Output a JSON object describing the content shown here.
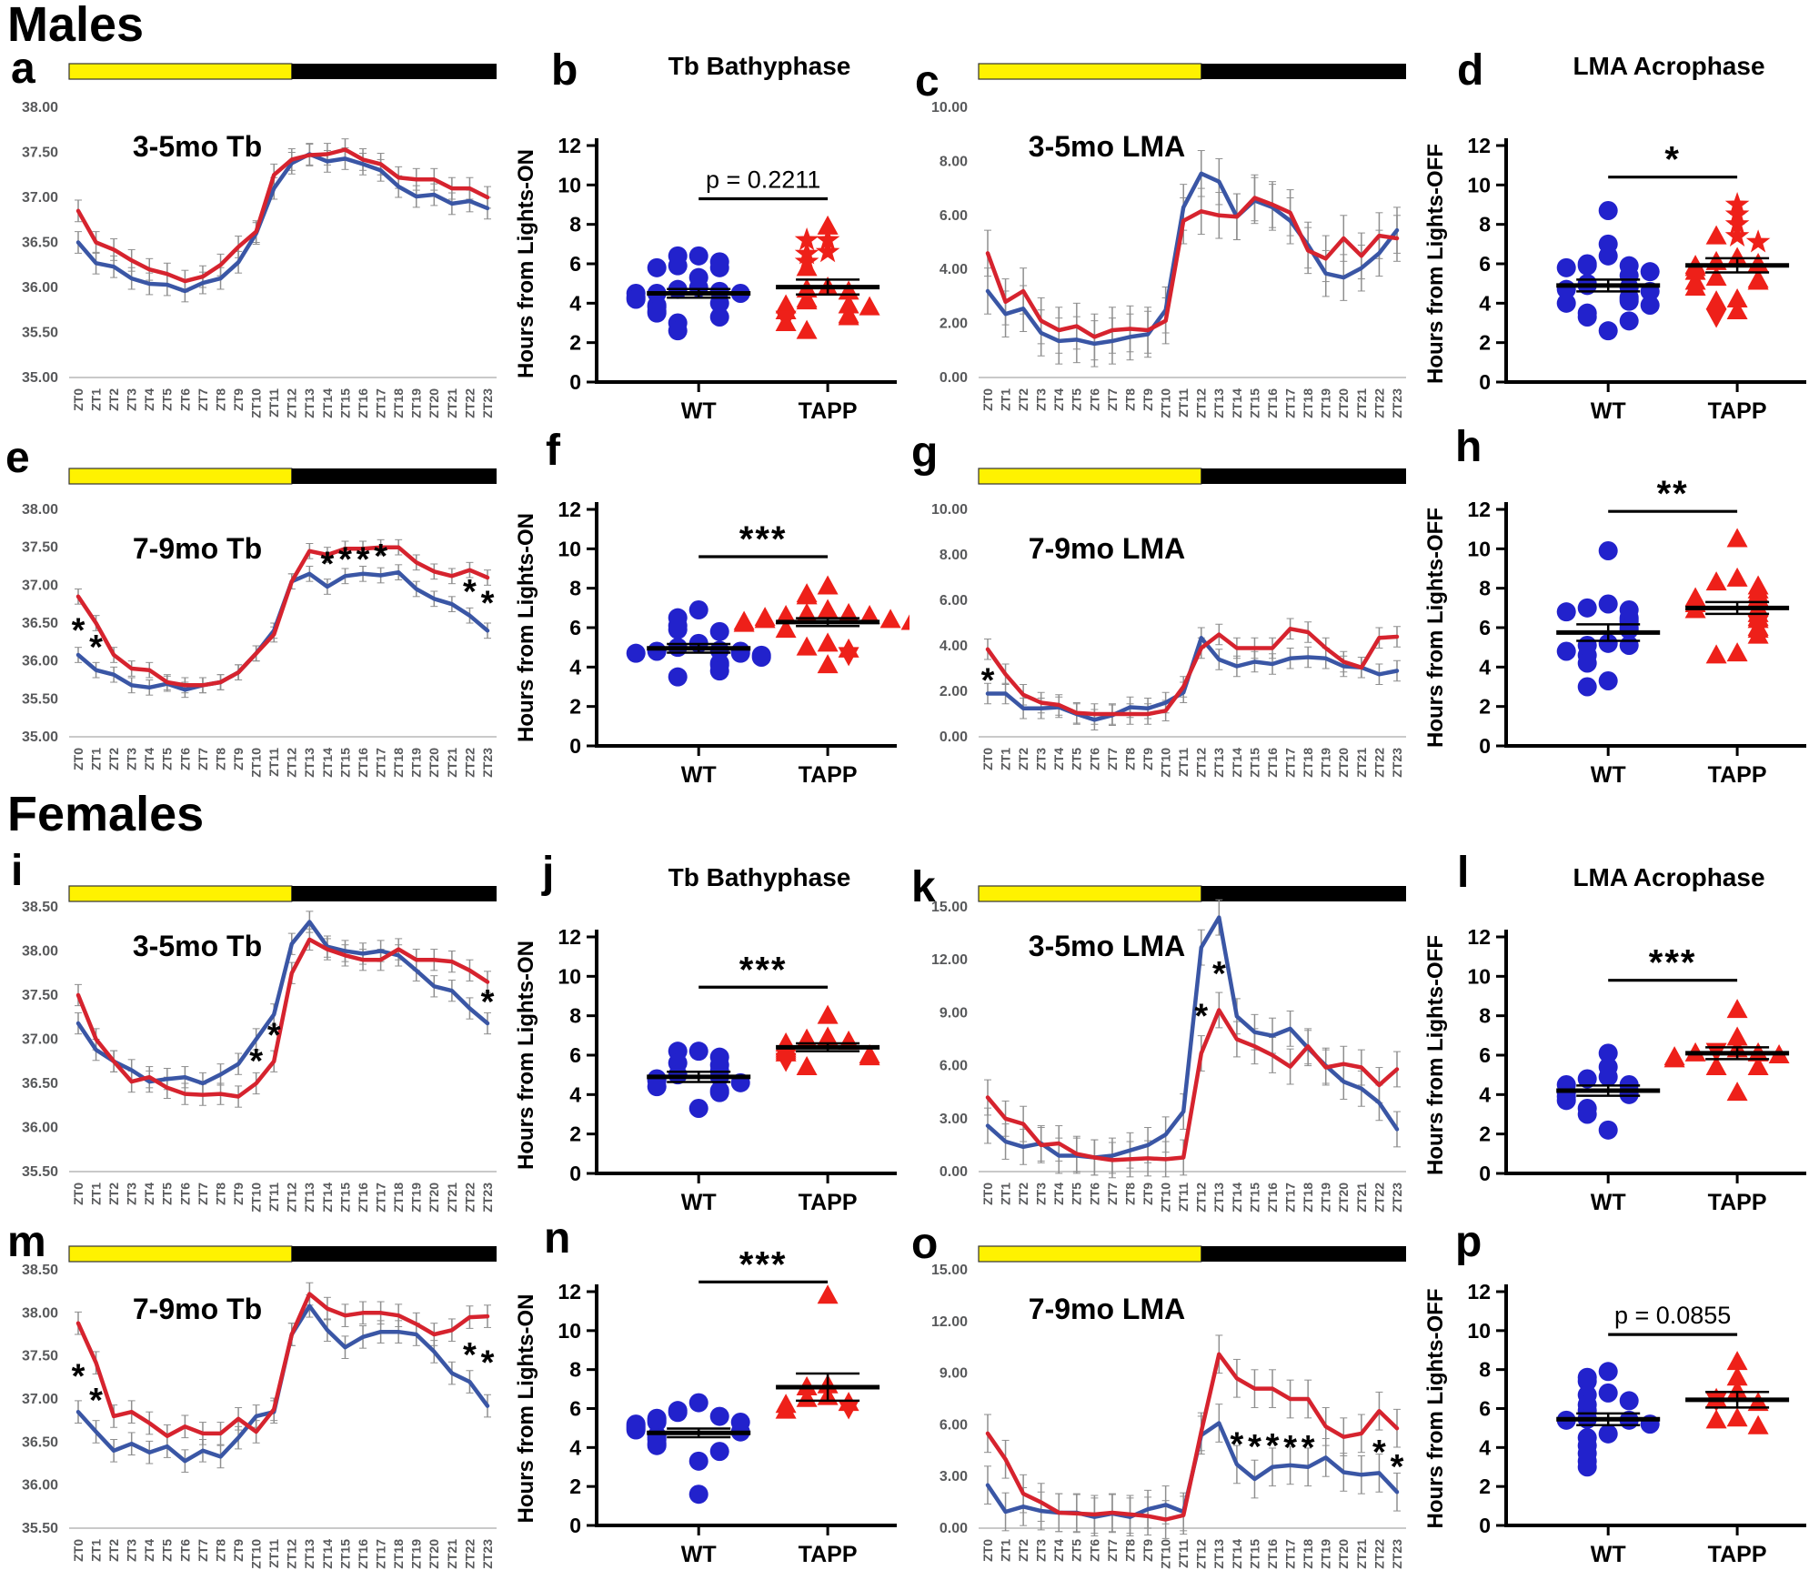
{
  "page": {
    "males_label": "Males",
    "females_label": "Females"
  },
  "groups": [
    "WT",
    "TAPP"
  ],
  "colors": {
    "wt_marker": "#2222cc",
    "wt_line": "#3a56a5",
    "tapp_marker": "#ee2019",
    "tapp_line": "#d6232e",
    "lights_on": "#fff200",
    "lights_off": "#000000",
    "error_bar": "#8f8f8f",
    "baseline_gray": "#c9c9c9",
    "tick_text": "#58595b",
    "axis_black": "#000000"
  },
  "x_categories": [
    "ZT0",
    "ZT1",
    "ZT2",
    "ZT3",
    "ZT4",
    "ZT5",
    "ZT6",
    "ZT7",
    "ZT8",
    "ZT9",
    "ZT10",
    "ZT11",
    "ZT12",
    "ZT13",
    "ZT14",
    "ZT15",
    "ZT16",
    "ZT17",
    "ZT18",
    "ZT19",
    "ZT20",
    "ZT21",
    "ZT22",
    "ZT23"
  ],
  "chart_data": [
    {
      "id": "a",
      "type": "line",
      "title": "3-5mo Tb",
      "ylim": [
        35,
        38
      ],
      "ytick_step": 0.5,
      "err": 0.12,
      "series": {
        "WT": [
          36.5,
          36.27,
          36.23,
          36.1,
          36.04,
          36.03,
          35.96,
          36.05,
          36.1,
          36.28,
          36.6,
          37.1,
          37.38,
          37.48,
          37.4,
          37.43,
          37.37,
          37.3,
          37.12,
          37.01,
          37.03,
          36.93,
          36.96,
          36.88
        ],
        "TAPP": [
          36.85,
          36.5,
          36.42,
          36.3,
          36.2,
          36.15,
          36.07,
          36.12,
          36.25,
          36.45,
          36.62,
          37.25,
          37.42,
          37.47,
          37.48,
          37.53,
          37.42,
          37.37,
          37.22,
          37.2,
          37.2,
          37.1,
          37.1,
          37.0
        ]
      },
      "asterisks": []
    },
    {
      "id": "b",
      "type": "scatter",
      "title": "Tb Bathyphase",
      "ylabel": "Hours from Lights-ON",
      "ylim": [
        0,
        12
      ],
      "ytick_step": 2,
      "sig": {
        "label": "p = 0.2211",
        "y": 9.3
      },
      "wt": {
        "values": [
          6.4,
          6.4,
          6.1,
          5.9,
          5.8,
          5.8,
          5.3,
          4.8,
          4.7,
          4.6,
          4.5,
          4.5,
          4.5,
          4.3,
          4.2,
          4.0,
          3.9,
          3.8,
          3.6,
          3.5,
          3.3,
          3.0,
          2.6
        ],
        "mean": 4.5,
        "sem": 0.22
      },
      "tapp": {
        "values": [
          7.9,
          7.2,
          7.2,
          6.6,
          6.5,
          6.1,
          5.8,
          4.8,
          4.7,
          4.6,
          4.2,
          4.1,
          3.9,
          3.9,
          3.8,
          3.6,
          3.4,
          3.3,
          3.2,
          3.0,
          2.6
        ],
        "star_idx": [
          1,
          2,
          3,
          4,
          5
        ],
        "down_idx": [
          18
        ],
        "mean": 4.82,
        "sem": 0.38
      }
    },
    {
      "id": "c",
      "type": "line",
      "title": "3-5mo LMA",
      "ylim": [
        0,
        10
      ],
      "ytick_step": 2,
      "err": 0.85,
      "series": {
        "WT": [
          3.2,
          2.35,
          2.55,
          1.65,
          1.35,
          1.4,
          1.25,
          1.35,
          1.5,
          1.6,
          2.5,
          6.3,
          7.55,
          7.25,
          5.95,
          6.55,
          6.3,
          5.8,
          4.9,
          3.85,
          3.7,
          4.05,
          4.6,
          5.45
        ],
        "TAPP": [
          4.6,
          2.8,
          3.2,
          2.1,
          1.75,
          1.9,
          1.5,
          1.75,
          1.8,
          1.75,
          2.1,
          5.8,
          6.15,
          6.0,
          5.95,
          6.65,
          6.4,
          6.1,
          4.7,
          4.4,
          5.15,
          4.5,
          5.25,
          5.15
        ]
      },
      "asterisks": []
    },
    {
      "id": "d",
      "type": "scatter",
      "title": "LMA Acrophase",
      "ylabel": "Hours from Lights-OFF",
      "ylim": [
        0,
        12
      ],
      "ytick_step": 2,
      "sig": {
        "label": "*",
        "y": 10.4
      },
      "wt": {
        "values": [
          8.7,
          7.0,
          6.4,
          6.0,
          5.9,
          5.9,
          5.8,
          5.6,
          5.4,
          5.0,
          4.9,
          4.8,
          4.7,
          4.6,
          4.3,
          4.2,
          4.1,
          4.0,
          3.9,
          3.5,
          3.3,
          3.1,
          2.6
        ],
        "mean": 4.9,
        "sem": 0.3
      },
      "tapp": {
        "values": [
          9.0,
          8.5,
          8.0,
          7.4,
          7.4,
          7.1,
          6.3,
          6.1,
          6.0,
          5.9,
          5.8,
          5.6,
          5.3,
          5.2,
          5.1,
          5.1,
          4.8,
          4.2,
          4.1,
          3.6,
          3.3
        ],
        "star_idx": [
          0,
          1,
          2,
          3,
          5
        ],
        "down_idx": [
          20
        ],
        "mean": 5.92,
        "sem": 0.36
      }
    },
    {
      "id": "e",
      "type": "line",
      "title": "7-9mo Tb",
      "ylim": [
        35,
        38
      ],
      "ytick_step": 0.5,
      "err": 0.1,
      "series": {
        "WT": [
          36.08,
          35.88,
          35.82,
          35.68,
          35.65,
          35.7,
          35.62,
          35.68,
          35.72,
          35.85,
          36.1,
          36.4,
          37.05,
          37.15,
          36.98,
          37.12,
          37.15,
          37.13,
          37.17,
          36.95,
          36.82,
          36.75,
          36.6,
          36.4
        ],
        "TAPP": [
          36.85,
          36.5,
          36.08,
          35.9,
          35.88,
          35.72,
          35.68,
          35.68,
          35.72,
          35.85,
          36.1,
          36.35,
          37.05,
          37.45,
          37.4,
          37.48,
          37.48,
          37.5,
          37.5,
          37.3,
          37.18,
          37.12,
          37.2,
          37.1
        ]
      },
      "asterisks": [
        [
          0,
          36.42
        ],
        [
          1,
          36.2
        ],
        [
          14,
          37.3
        ],
        [
          15,
          37.36
        ],
        [
          16,
          37.36
        ],
        [
          17,
          37.4
        ],
        [
          22,
          36.93
        ],
        [
          23,
          36.78
        ]
      ]
    },
    {
      "id": "f",
      "type": "scatter",
      "title": "",
      "ylabel": "Hours from Lights-ON",
      "ylim": [
        0,
        12
      ],
      "ytick_step": 2,
      "sig": {
        "label": "***",
        "y": 9.6
      },
      "wt": {
        "values": [
          6.9,
          6.5,
          6.1,
          5.9,
          5.8,
          5.2,
          5.0,
          4.85,
          4.8,
          4.8,
          4.7,
          4.7,
          4.6,
          4.5,
          4.2,
          4.1,
          3.8,
          3.5
        ],
        "mean": 4.95,
        "sem": 0.22
      },
      "tapp": {
        "values": [
          8.1,
          7.7,
          7.6,
          6.9,
          6.7,
          6.7,
          6.6,
          6.6,
          6.5,
          6.4,
          6.4,
          6.3,
          6.3,
          6.2,
          5.9,
          5.2,
          5.0,
          4.9,
          4.6,
          4.1
        ],
        "star_idx": [],
        "down_idx": [
          18
        ],
        "mean": 6.28,
        "sem": 0.2
      }
    },
    {
      "id": "g",
      "type": "line",
      "title": "7-9mo LMA",
      "ylim": [
        0,
        10
      ],
      "ytick_step": 2,
      "err": 0.45,
      "series": {
        "WT": [
          1.9,
          1.9,
          1.25,
          1.25,
          1.3,
          1.0,
          0.75,
          0.95,
          1.3,
          1.25,
          1.5,
          1.95,
          4.35,
          3.4,
          3.1,
          3.3,
          3.2,
          3.45,
          3.5,
          3.45,
          3.1,
          3.05,
          2.75,
          2.9
        ],
        "TAPP": [
          3.85,
          2.75,
          1.85,
          1.5,
          1.4,
          1.05,
          1.0,
          1.0,
          1.0,
          1.0,
          1.15,
          2.2,
          3.9,
          4.5,
          3.9,
          3.9,
          3.9,
          4.75,
          4.6,
          3.9,
          3.3,
          3.05,
          4.35,
          4.4
        ]
      },
      "asterisks": [
        [
          0,
          2.55
        ]
      ]
    },
    {
      "id": "h",
      "type": "scatter",
      "title": "",
      "ylabel": "Hours from Lights-OFF",
      "ylim": [
        0,
        12
      ],
      "ytick_step": 2,
      "sig": {
        "label": "**",
        "y": 11.9
      },
      "wt": {
        "values": [
          9.9,
          7.2,
          7.0,
          6.9,
          6.8,
          6.5,
          6.4,
          6.3,
          6.0,
          5.9,
          5.2,
          5.1,
          5.1,
          4.8,
          4.6,
          4.2,
          3.3,
          3.0
        ],
        "mean": 5.75,
        "sem": 0.42
      },
      "tapp": {
        "values": [
          10.5,
          8.5,
          8.3,
          8.1,
          7.9,
          7.7,
          7.5,
          7.5,
          7.3,
          7.2,
          7.0,
          6.9,
          6.7,
          6.5,
          6.4,
          6.2,
          6.0,
          5.9,
          5.6,
          4.7,
          4.6
        ],
        "star_idx": [],
        "down_idx": [
          15
        ],
        "mean": 7.0,
        "sem": 0.3
      }
    },
    {
      "id": "i",
      "type": "line",
      "title": "3-5mo Tb",
      "ylim": [
        35.5,
        38.5
      ],
      "ytick_step": 0.5,
      "err": 0.12,
      "series": {
        "WT": [
          37.18,
          36.88,
          36.75,
          36.65,
          36.52,
          36.55,
          36.57,
          36.5,
          36.6,
          36.72,
          37.0,
          37.28,
          38.08,
          38.33,
          38.05,
          38.0,
          37.97,
          38.0,
          37.95,
          37.78,
          37.6,
          37.55,
          37.35,
          37.18
        ],
        "TAPP": [
          37.5,
          37.0,
          36.75,
          36.52,
          36.57,
          36.45,
          36.38,
          36.37,
          36.38,
          36.35,
          36.5,
          36.75,
          37.75,
          38.13,
          38.02,
          37.95,
          37.9,
          37.9,
          38.02,
          37.9,
          37.9,
          37.88,
          37.78,
          37.65
        ]
      },
      "asterisks": [
        [
          10,
          36.77
        ],
        [
          11,
          37.06
        ],
        [
          23,
          37.44
        ]
      ]
    },
    {
      "id": "j",
      "type": "scatter",
      "title": "Tb Bathyphase",
      "ylabel": "Hours from Lights-ON",
      "ylim": [
        0,
        12
      ],
      "ytick_step": 2,
      "sig": {
        "label": "***",
        "y": 9.45
      },
      "wt": {
        "values": [
          6.2,
          6.2,
          5.9,
          5.6,
          5.5,
          5.2,
          5.0,
          4.9,
          4.8,
          4.7,
          4.6,
          4.4,
          4.2,
          4.1,
          3.3
        ],
        "mean": 4.9,
        "sem": 0.26
      },
      "tapp": {
        "values": [
          8.0,
          6.9,
          6.8,
          6.7,
          6.6,
          6.4,
          6.3,
          6.2,
          6.1,
          6.0,
          5.9,
          5.7,
          5.4
        ],
        "star_idx": [],
        "down_idx": [
          11
        ],
        "mean": 6.4,
        "sem": 0.2
      }
    },
    {
      "id": "k",
      "type": "line",
      "title": "3-5mo LMA",
      "ylim": [
        0,
        15
      ],
      "ytick_step": 3,
      "err": 1.0,
      "series": {
        "WT": [
          2.6,
          1.7,
          1.4,
          1.6,
          0.9,
          0.9,
          0.8,
          0.9,
          1.2,
          1.5,
          2.1,
          3.4,
          12.7,
          14.4,
          8.8,
          7.9,
          7.7,
          8.1,
          7.0,
          6.0,
          5.1,
          4.7,
          3.9,
          2.4
        ],
        "TAPP": [
          4.2,
          3.0,
          2.7,
          1.5,
          1.6,
          1.0,
          0.8,
          0.65,
          0.7,
          0.75,
          0.7,
          0.8,
          6.7,
          9.15,
          7.5,
          7.1,
          6.6,
          5.95,
          7.1,
          5.9,
          6.1,
          5.9,
          4.9,
          5.8
        ]
      },
      "asterisks": [
        [
          12,
          8.9
        ],
        [
          13,
          11.3
        ]
      ]
    },
    {
      "id": "l",
      "type": "scatter",
      "title": "LMA Acrophase",
      "ylabel": "Hours from Lights-OFF",
      "ylim": [
        0,
        12
      ],
      "ytick_step": 2,
      "sig": {
        "label": "***",
        "y": 9.8
      },
      "wt": {
        "values": [
          6.1,
          5.4,
          4.9,
          4.8,
          4.5,
          4.5,
          4.2,
          4.1,
          4.0,
          3.9,
          3.7,
          3.3,
          3.0,
          2.2
        ],
        "mean": 4.2,
        "sem": 0.26
      },
      "tapp": {
        "values": [
          8.3,
          6.9,
          6.3,
          6.2,
          6.1,
          6.1,
          6.0,
          5.9,
          5.8,
          5.4,
          5.4,
          4.1
        ],
        "star_idx": [],
        "down_idx": [
          3
        ],
        "mean": 6.1,
        "sem": 0.3
      }
    },
    {
      "id": "m",
      "type": "line",
      "title": "7-9mo Tb",
      "ylim": [
        35.5,
        38.5
      ],
      "ytick_step": 0.5,
      "err": 0.13,
      "series": {
        "WT": [
          36.85,
          36.62,
          36.4,
          36.48,
          36.38,
          36.45,
          36.28,
          36.4,
          36.33,
          36.55,
          36.8,
          36.85,
          37.75,
          38.08,
          37.8,
          37.6,
          37.72,
          37.78,
          37.78,
          37.75,
          37.55,
          37.3,
          37.2,
          36.92
        ],
        "TAPP": [
          37.88,
          37.42,
          36.8,
          36.85,
          36.72,
          36.57,
          36.68,
          36.6,
          36.6,
          36.77,
          36.62,
          36.88,
          37.75,
          38.22,
          38.05,
          37.97,
          38.0,
          38.0,
          37.97,
          37.87,
          37.75,
          37.8,
          37.95,
          37.96
        ]
      },
      "asterisks": [
        [
          0,
          37.28
        ],
        [
          1,
          37.0
        ],
        [
          22,
          37.53
        ],
        [
          23,
          37.44
        ]
      ]
    },
    {
      "id": "n",
      "type": "scatter",
      "title": "",
      "ylabel": "Hours from Lights-ON",
      "ylim": [
        0,
        12
      ],
      "ytick_step": 2,
      "sig": {
        "label": "***",
        "y": 12.5
      },
      "wt": {
        "values": [
          6.3,
          5.9,
          5.8,
          5.6,
          5.5,
          5.4,
          5.3,
          5.3,
          5.2,
          5.1,
          5.0,
          4.9,
          4.8,
          4.6,
          4.5,
          4.4,
          4.2,
          4.1,
          3.8,
          3.3,
          1.6
        ],
        "mean": 4.75,
        "sem": 0.22
      },
      "tapp": {
        "values": [
          11.8,
          7.2,
          7.1,
          6.6,
          6.5,
          6.3,
          6.2,
          6.0,
          5.9
        ],
        "star_idx": [],
        "down_idx": [
          7
        ],
        "mean": 7.1,
        "sem": 0.7
      }
    },
    {
      "id": "o",
      "type": "line",
      "title": "7-9mo LMA",
      "ylim": [
        0,
        15
      ],
      "ytick_step": 3,
      "err": 1.1,
      "series": {
        "WT": [
          2.5,
          0.95,
          1.25,
          1.0,
          0.9,
          0.9,
          0.65,
          0.85,
          0.65,
          1.1,
          1.35,
          0.95,
          5.4,
          6.1,
          3.7,
          2.85,
          3.55,
          3.65,
          3.55,
          4.1,
          3.25,
          3.1,
          3.2,
          2.1
        ],
        "TAPP": [
          5.5,
          4.0,
          2.0,
          1.5,
          0.9,
          0.85,
          0.8,
          0.9,
          0.8,
          0.7,
          0.5,
          0.75,
          5.6,
          10.1,
          8.7,
          8.1,
          8.1,
          7.5,
          7.5,
          5.9,
          5.3,
          5.5,
          6.8,
          5.8
        ]
      },
      "asterisks": [
        [
          14,
          4.95
        ],
        [
          15,
          4.8
        ],
        [
          16,
          4.85
        ],
        [
          17,
          4.75
        ],
        [
          18,
          4.75
        ],
        [
          22,
          4.5
        ],
        [
          23,
          3.65
        ]
      ]
    },
    {
      "id": "p",
      "type": "scatter",
      "title": "",
      "ylabel": "Hours from Lights-OFF",
      "ylim": [
        0,
        12
      ],
      "ytick_step": 2,
      "sig": {
        "label": "p = 0.0855",
        "y": 9.8
      },
      "wt": {
        "values": [
          7.9,
          7.6,
          7.4,
          6.8,
          6.7,
          6.4,
          6.2,
          5.9,
          5.5,
          5.45,
          5.4,
          5.4,
          5.2,
          4.7,
          4.5,
          4.1,
          3.7,
          3.3,
          3.0
        ],
        "mean": 5.45,
        "sem": 0.3
      },
      "tapp": {
        "values": [
          8.4,
          7.6,
          6.9,
          6.5,
          6.4,
          6.3,
          5.5,
          5.4,
          5.1
        ],
        "star_idx": [],
        "down_idx": [
          4
        ],
        "mean": 6.45,
        "sem": 0.4
      }
    }
  ]
}
